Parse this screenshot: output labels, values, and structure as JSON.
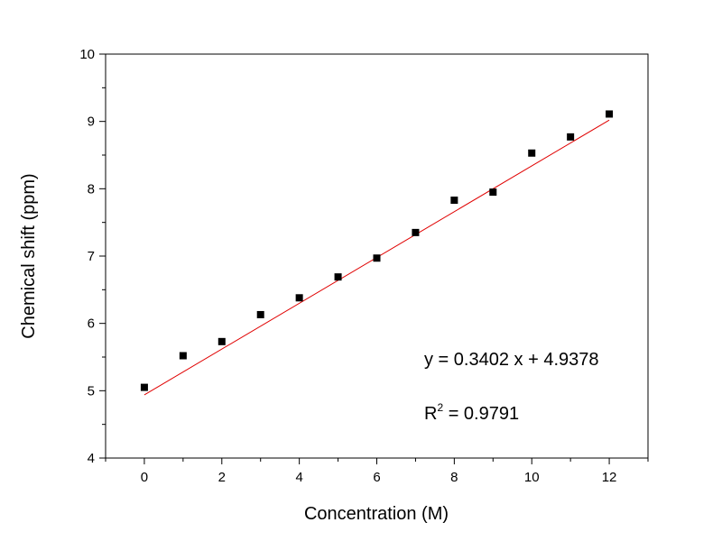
{
  "chart_data": {
    "type": "scatter",
    "title": "",
    "xlabel": "Concentration (M)",
    "ylabel": "Chemical shift (ppm)",
    "xlim": [
      -1,
      13
    ],
    "ylim": [
      4,
      10
    ],
    "x_ticks": [
      0,
      2,
      4,
      6,
      8,
      10,
      12
    ],
    "y_ticks": [
      4,
      5,
      6,
      7,
      8,
      9,
      10
    ],
    "grid": false,
    "legend": "none",
    "series": [
      {
        "type": "scatter",
        "marker": "square",
        "color": "#000000",
        "points": [
          {
            "x": 0,
            "y": 5.05
          },
          {
            "x": 1,
            "y": 5.52
          },
          {
            "x": 2,
            "y": 5.73
          },
          {
            "x": 3,
            "y": 6.13
          },
          {
            "x": 4,
            "y": 6.38
          },
          {
            "x": 5,
            "y": 6.69
          },
          {
            "x": 6,
            "y": 6.97
          },
          {
            "x": 7,
            "y": 7.35
          },
          {
            "x": 8,
            "y": 7.83
          },
          {
            "x": 9,
            "y": 7.95
          },
          {
            "x": 10,
            "y": 8.53
          },
          {
            "x": 11,
            "y": 8.77
          },
          {
            "x": 12,
            "y": 9.11
          }
        ]
      },
      {
        "type": "line",
        "color": "#e00000",
        "slope": 0.3402,
        "intercept": 4.9378,
        "x_range": [
          0,
          12
        ]
      }
    ],
    "annotations": {
      "equation": "y = 0.3402 x + 4.9378",
      "r2_base": "R",
      "r2_sup": "2",
      "r2_value": " = 0.9791"
    }
  }
}
